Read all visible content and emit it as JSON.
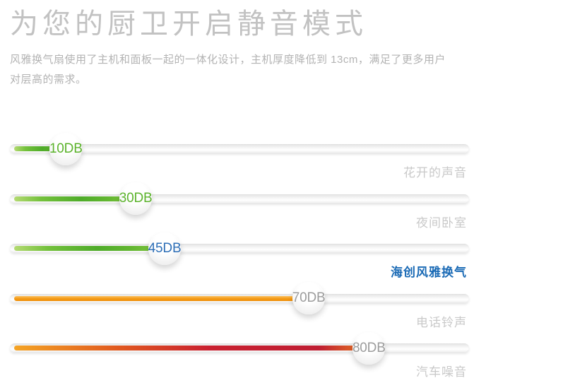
{
  "header": {
    "title": "为您的厨卫开启静音模式",
    "subtitle_lines": [
      "风雅换气扇使用了主机和面板一起的一体化设计，主机厚度降低到 13cm，满足了更多用户",
      "对层高的需求。"
    ]
  },
  "colors": {
    "green": "#5cb32c",
    "orange": "#f2940c",
    "red": "#c92030",
    "highlight_blue": "#1a6ab5",
    "label_gray": "#c9c9c9",
    "title_gray": "#c2c2c2",
    "track_gray": "#ececec"
  },
  "bars": [
    {
      "value": "10DB",
      "label": "花开的声音",
      "fill_pct": 12.2,
      "fill": "green",
      "value_color": "green",
      "highlight": false
    },
    {
      "value": "30DB",
      "label": "夜间卧室",
      "fill_pct": 27.4,
      "fill": "green",
      "value_color": "green",
      "highlight": false
    },
    {
      "value": "45DB",
      "label": "海创风雅换气",
      "fill_pct": 33.7,
      "fill": "green",
      "value_color": "blue",
      "highlight": true
    },
    {
      "value": "70DB",
      "label": "电话铃声",
      "fill_pct": 65.1,
      "fill": "orange",
      "value_color": "gray",
      "highlight": false
    },
    {
      "value": "80DB",
      "label": "汽车噪音",
      "fill_pct": 78.2,
      "fill": "red",
      "value_color": "gray",
      "highlight": false
    }
  ],
  "chart_data": {
    "type": "bar",
    "orientation": "horizontal",
    "title": "为您的厨卫开启静音模式",
    "categories": [
      "花开的声音",
      "夜间卧室",
      "海创风雅换气",
      "电话铃声",
      "汽车噪音"
    ],
    "values": [
      10,
      30,
      45,
      70,
      80
    ],
    "value_labels": [
      "10DB",
      "30DB",
      "45DB",
      "70DB",
      "80DB"
    ],
    "unit": "DB",
    "highlight_category": "海创风雅换气",
    "xlim": [
      0,
      100
    ],
    "grid": false,
    "legend": false
  }
}
